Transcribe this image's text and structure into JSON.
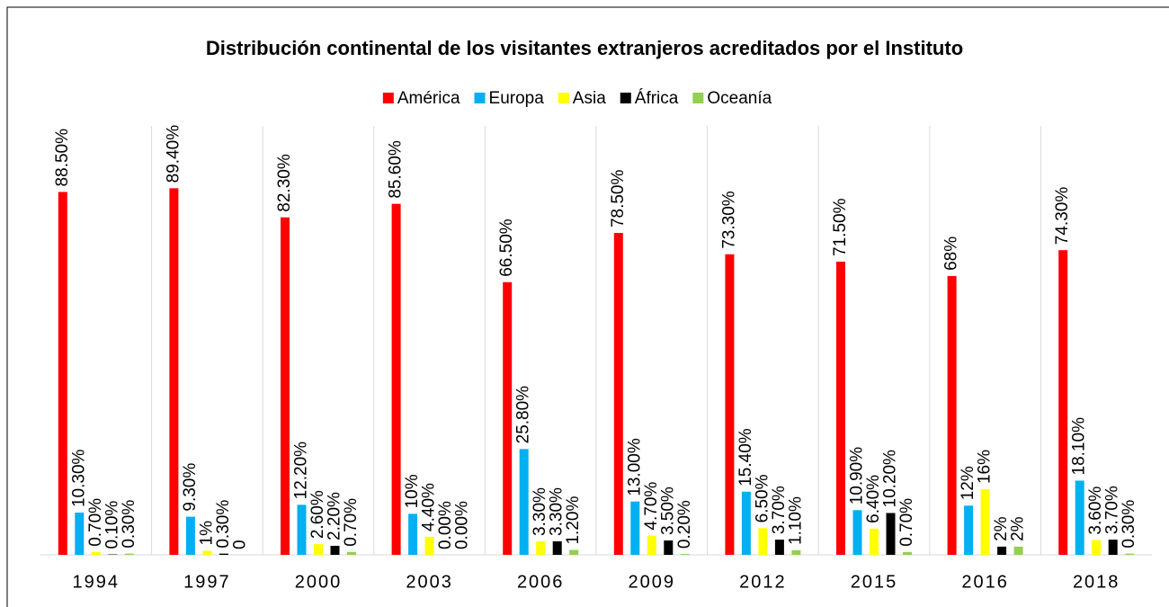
{
  "chart_data": {
    "type": "bar",
    "title": "Distribución continental de los visitantes extranjeros acreditados por el Instituto",
    "categories": [
      "1994",
      "1997",
      "2000",
      "2003",
      "2006",
      "2009",
      "2012",
      "2015",
      "2016",
      "2018"
    ],
    "series": [
      {
        "name": "América",
        "color": "#ff0000",
        "values": [
          88.5,
          89.4,
          82.3,
          85.6,
          66.5,
          78.5,
          73.3,
          71.5,
          68,
          74.3
        ],
        "value_labels": [
          "88.50%",
          "89.40%",
          "82.30%",
          "85.60%",
          "66.50%",
          "78.50%",
          "73.30%",
          "71.50%",
          "68%",
          "74.30%"
        ]
      },
      {
        "name": "Europa",
        "color": "#00b0f0",
        "values": [
          10.3,
          9.3,
          12.2,
          10,
          25.8,
          13.0,
          15.4,
          10.9,
          12,
          18.1
        ],
        "value_labels": [
          "10.30%",
          "9.30%",
          "12.20%",
          "10%",
          "25.80%",
          "13.00%",
          "15.40%",
          "10.90%",
          "12%",
          "18.10%"
        ]
      },
      {
        "name": "Asia",
        "color": "#ffff00",
        "values": [
          0.7,
          1,
          2.6,
          4.4,
          3.3,
          4.7,
          6.5,
          6.4,
          16,
          3.6
        ],
        "value_labels": [
          "0.70%",
          "1%",
          "2.60%",
          "4.40%",
          "3.30%",
          "4.70%",
          "6.50%",
          "6.40%",
          "16%",
          "3.60%"
        ]
      },
      {
        "name": "África",
        "color": "#000000",
        "values": [
          0.1,
          0.3,
          2.2,
          0.0,
          3.3,
          3.5,
          3.7,
          10.2,
          2,
          3.7
        ],
        "value_labels": [
          "0.10%",
          "0.30%",
          "2.20%",
          "0.00%",
          "3.30%",
          "3.50%",
          "3.70%",
          "10.20%",
          "2%",
          "3.70%"
        ]
      },
      {
        "name": "Oceanía",
        "color": "#92d050",
        "values": [
          0.3,
          0,
          0.7,
          0.0,
          1.2,
          0.2,
          1.1,
          0.7,
          2,
          0.3
        ],
        "value_labels": [
          "0.30%",
          "0",
          "0.70%",
          "0.00%",
          "1.20%",
          "0.20%",
          "1.10%",
          "0.70%",
          "2%",
          "0.30%"
        ]
      }
    ],
    "ylim": [
      0,
      100
    ],
    "legend": "top"
  }
}
